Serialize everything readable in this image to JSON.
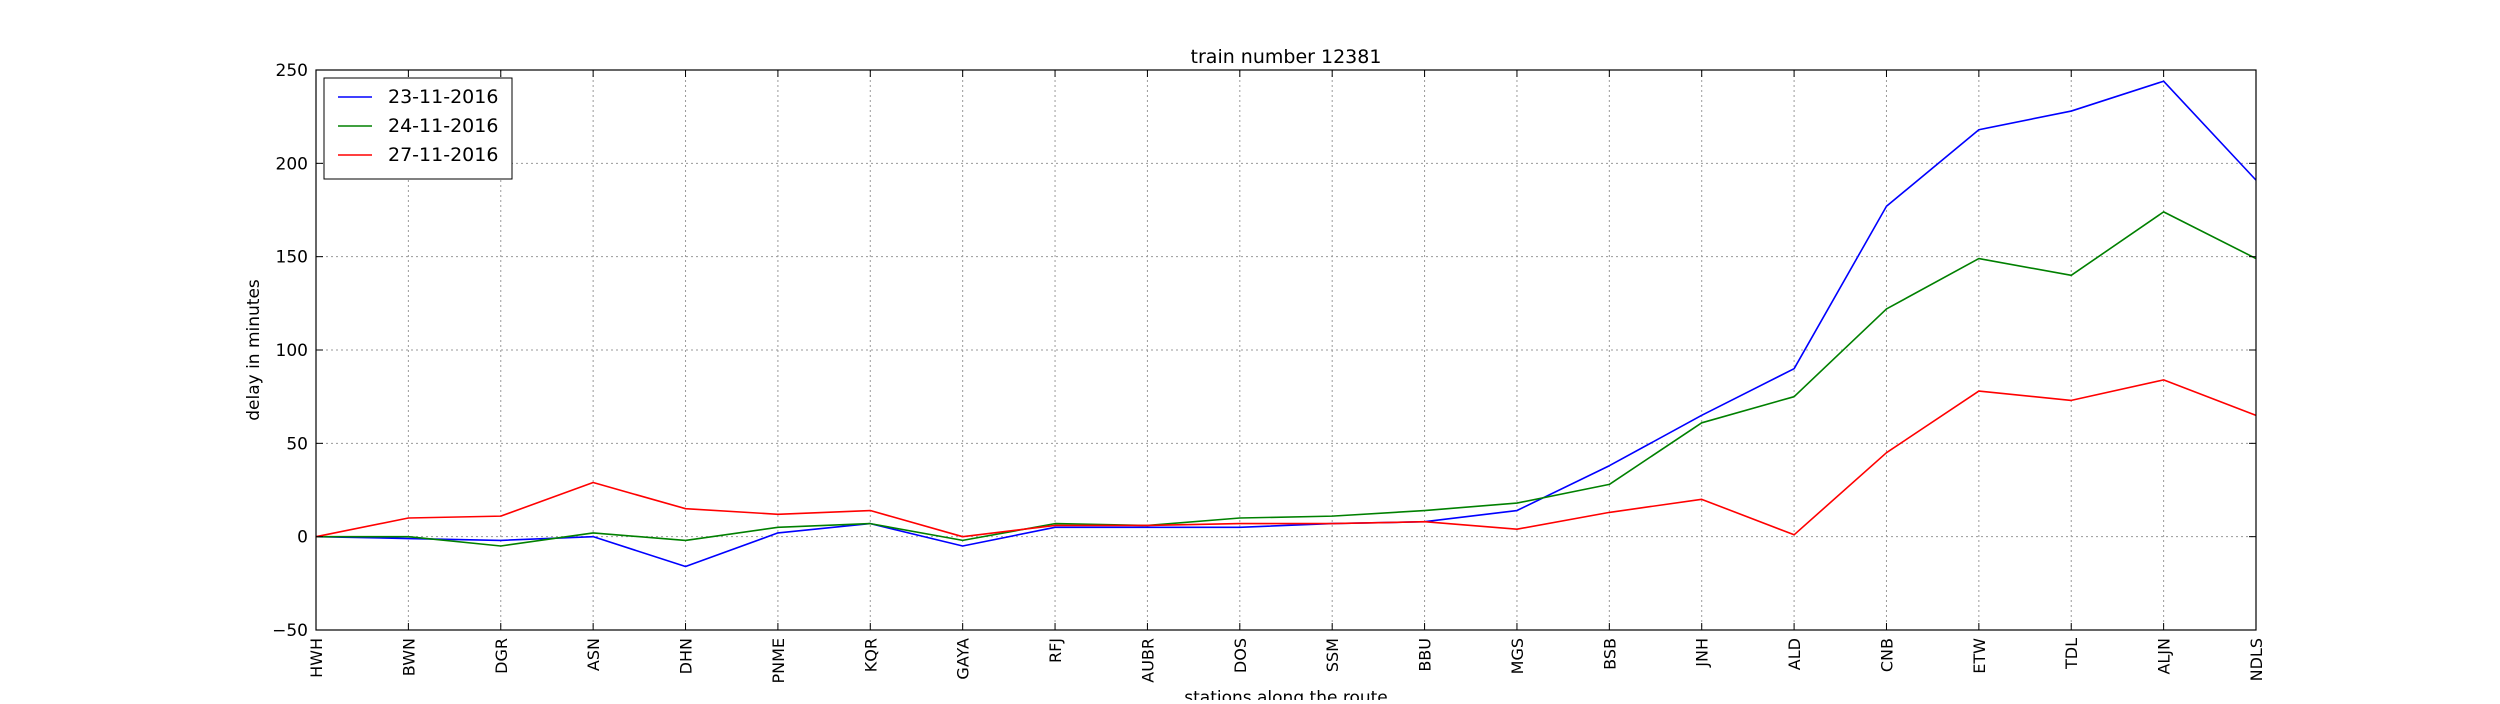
{
  "chart_data": {
    "type": "line",
    "title": "train number 12381",
    "xlabel": "stations along the route",
    "ylabel": "delay in minutes",
    "categories": [
      "HWH",
      "BWN",
      "DGR",
      "ASN",
      "DHN",
      "PNME",
      "KQR",
      "GAYA",
      "RFJ",
      "AUBR",
      "DOS",
      "SSM",
      "BBU",
      "MGS",
      "BSB",
      "JNH",
      "ALD",
      "CNB",
      "ETW",
      "TDL",
      "ALJN",
      "NDLS"
    ],
    "ylim": [
      -50,
      250
    ],
    "yticks": [
      -50,
      0,
      50,
      100,
      150,
      200,
      250
    ],
    "grid": true,
    "legend_position": "top-left",
    "series": [
      {
        "name": "23-11-2016",
        "color": "#0000ff",
        "values": [
          0,
          -1,
          -2,
          0,
          -16,
          2,
          7,
          -5,
          5,
          5,
          5,
          7,
          8,
          14,
          38,
          65,
          90,
          177,
          218,
          228,
          244,
          191
        ]
      },
      {
        "name": "24-11-2016",
        "color": "#008000",
        "values": [
          0,
          0,
          -5,
          2,
          -2,
          5,
          7,
          -2,
          7,
          6,
          10,
          11,
          14,
          18,
          28,
          61,
          75,
          122,
          149,
          140,
          174,
          149
        ]
      },
      {
        "name": "27-11-2016",
        "color": "#ff0000",
        "values": [
          0,
          10,
          11,
          29,
          15,
          12,
          14,
          0,
          6,
          6,
          7,
          7,
          8,
          4,
          13,
          20,
          1,
          45,
          78,
          73,
          84,
          65
        ]
      }
    ]
  }
}
